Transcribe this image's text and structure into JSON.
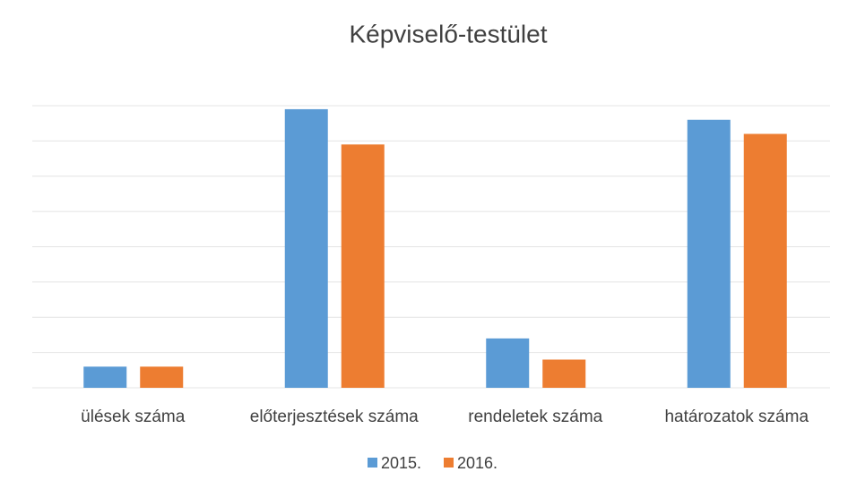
{
  "chart_data": {
    "type": "bar",
    "title": "Képviselő-testület",
    "categories": [
      "ülések száma",
      "előterjesztések száma",
      "rendeletek száma",
      "határozatok száma"
    ],
    "series": [
      {
        "name": "2015.",
        "color": "#5b9bd5",
        "values": [
          0.6,
          7.9,
          1.4,
          7.6
        ]
      },
      {
        "name": "2016.",
        "color": "#ed7d31",
        "values": [
          0.6,
          6.9,
          0.8,
          7.2
        ]
      }
    ],
    "ylim": [
      0,
      8
    ],
    "yticks": [
      0,
      1,
      2,
      3,
      4,
      5,
      6,
      7,
      8
    ],
    "grid": true,
    "legend": "bottom"
  }
}
